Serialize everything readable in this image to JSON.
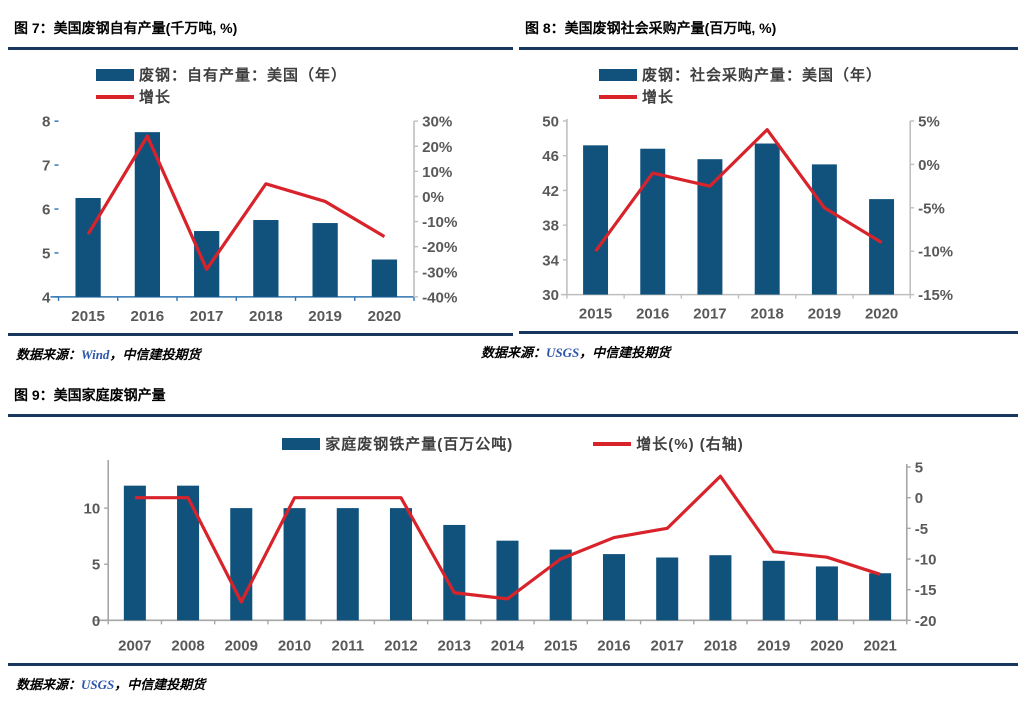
{
  "theme": {
    "navy_rule": "#17375E",
    "bar_color": "#11527D",
    "line_color": "#D9232B",
    "axis_label_color": "#595959",
    "source_link_color": "#2B55A8"
  },
  "figures": [
    {
      "title": "图 7：美国废钢自有产量(千万吨, %)",
      "source_prefix": "数据来源：",
      "source_org": "Wind",
      "source_suffix": "，中信建投期货"
    },
    {
      "title": "图 8：美国废钢社会采购产量(百万吨, %)",
      "source_prefix": "数据来源：",
      "source_org": "USGS",
      "source_suffix": "，中信建投期货"
    },
    {
      "title": "图 9：美国家庭废钢产量",
      "source_prefix": "数据来源：",
      "source_org": "USGS",
      "source_suffix": "，中信建投期货"
    }
  ],
  "chart_data": [
    {
      "type": "bar+line",
      "title": "美国废钢自有产量(千万吨, %)",
      "categories": [
        "2015",
        "2016",
        "2017",
        "2018",
        "2019",
        "2020"
      ],
      "series": [
        {
          "name": "废钢：自有产量：美国（年）",
          "type": "bar",
          "axis": "left",
          "values": [
            6.25,
            7.75,
            5.5,
            5.75,
            5.68,
            4.85
          ]
        },
        {
          "name": "增长",
          "type": "line",
          "axis": "right",
          "values": [
            -15,
            24,
            -29,
            5,
            -2,
            -16
          ]
        }
      ],
      "left_axis": {
        "min": 4,
        "max": 8,
        "tick_values": [
          4,
          5,
          6,
          7,
          8
        ],
        "tick_labels": [
          "4",
          "5",
          "6",
          "7",
          "8"
        ]
      },
      "right_axis": {
        "min": -40,
        "max": 30,
        "tick_values": [
          -40,
          -30,
          -20,
          -10,
          0,
          10,
          20,
          30
        ],
        "tick_labels": [
          "-40%",
          "-30%",
          "-20%",
          "-10%",
          "0%",
          "10%",
          "20%",
          "30%"
        ]
      },
      "grid": false,
      "legend_position": "top-left"
    },
    {
      "type": "bar+line",
      "title": "美国废钢社会采购产量(百万吨, %)",
      "categories": [
        "2015",
        "2016",
        "2017",
        "2018",
        "2019",
        "2020"
      ],
      "series": [
        {
          "name": "废钢：社会采购产量：美国（年）",
          "type": "bar",
          "axis": "left",
          "values": [
            47.2,
            46.8,
            45.6,
            47.4,
            45.0,
            41.0
          ]
        },
        {
          "name": "增长",
          "type": "line",
          "axis": "right",
          "values": [
            -10,
            -1,
            -2.5,
            4,
            -5,
            -9
          ]
        }
      ],
      "left_axis": {
        "min": 30,
        "max": 50,
        "tick_values": [
          30,
          34,
          38,
          42,
          46,
          50
        ],
        "tick_labels": [
          "30",
          "34",
          "38",
          "42",
          "46",
          "50"
        ]
      },
      "right_axis": {
        "min": -15,
        "max": 5,
        "tick_values": [
          -15,
          -10,
          -5,
          0,
          5
        ],
        "tick_labels": [
          "-15%",
          "-10%",
          "-5%",
          "0%",
          "5%"
        ]
      },
      "grid": false,
      "legend_position": "top-left"
    },
    {
      "type": "bar+line",
      "title": "美国家庭废钢产量",
      "categories": [
        "2007",
        "2008",
        "2009",
        "2010",
        "2011",
        "2012",
        "2013",
        "2014",
        "2015",
        "2016",
        "2017",
        "2018",
        "2019",
        "2020",
        "2021"
      ],
      "series": [
        {
          "name": "家庭废钢铁产量(百万公吨)",
          "type": "bar",
          "axis": "left",
          "values": [
            12,
            12,
            10,
            10,
            10,
            10,
            8.5,
            7.1,
            6.3,
            5.9,
            5.6,
            5.8,
            5.3,
            4.8,
            4.2
          ]
        },
        {
          "name": "增长(%) (右轴)",
          "type": "line",
          "axis": "right",
          "values": [
            0,
            0,
            -17,
            0,
            0,
            0,
            -15.5,
            -16.5,
            -10,
            -6.5,
            -5,
            3.5,
            -8.8,
            -9.7,
            -12.5
          ]
        }
      ],
      "left_axis": {
        "min": 0,
        "max": 10,
        "tick_values": [
          0,
          5,
          10
        ],
        "tick_labels": [
          "0",
          "5",
          "10"
        ]
      },
      "right_axis": {
        "min": -20,
        "max": 5,
        "tick_values": [
          -20,
          -15,
          -10,
          -5,
          0,
          5
        ],
        "tick_labels": [
          "-20",
          "-15",
          "-10",
          "-5",
          "0",
          "5"
        ]
      },
      "grid": false,
      "legend_position": "top-center"
    }
  ]
}
